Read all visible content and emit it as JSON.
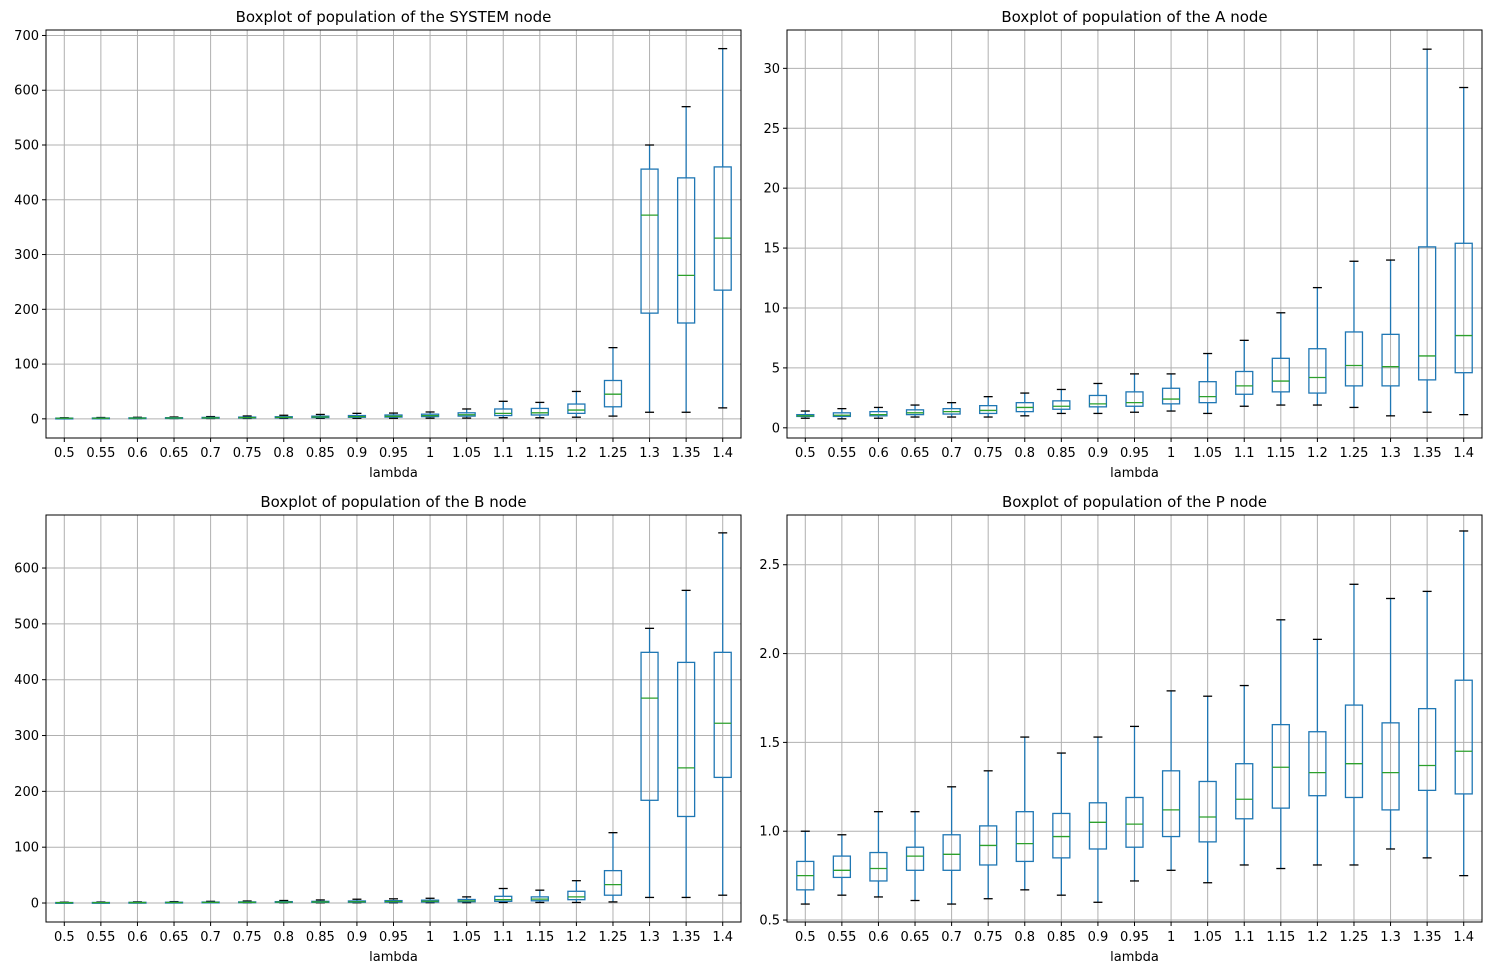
{
  "chart_data": [
    {
      "type": "boxplot",
      "title": "Boxplot of population of the SYSTEM node",
      "xlabel": "lambda",
      "ylabel": "",
      "grid": true,
      "ylim": [
        -35,
        710
      ],
      "yticks": [
        0,
        100,
        200,
        300,
        400,
        500,
        600,
        700
      ],
      "categories": [
        "0.5",
        "0.55",
        "0.6",
        "0.65",
        "0.7",
        "0.75",
        "0.8",
        "0.85",
        "0.9",
        "0.95",
        "1",
        "1.05",
        "1.1",
        "1.15",
        "1.2",
        "1.25",
        "1.3",
        "1.35",
        "1.4"
      ],
      "boxes": [
        {
          "whislo": 0.5,
          "q1": 0.8,
          "med": 1.0,
          "q3": 1.3,
          "whishi": 2.0
        },
        {
          "whislo": 0.5,
          "q1": 0.9,
          "med": 1.1,
          "q3": 1.5,
          "whishi": 2.4
        },
        {
          "whislo": 0.5,
          "q1": 1.0,
          "med": 1.3,
          "q3": 1.8,
          "whishi": 2.8
        },
        {
          "whislo": 0.6,
          "q1": 1.1,
          "med": 1.5,
          "q3": 2.1,
          "whishi": 3.3
        },
        {
          "whislo": 0.6,
          "q1": 1.3,
          "med": 1.8,
          "q3": 2.6,
          "whishi": 4.1
        },
        {
          "whislo": 0.7,
          "q1": 1.6,
          "med": 2.2,
          "q3": 3.2,
          "whishi": 5.2
        },
        {
          "whislo": 0.8,
          "q1": 1.9,
          "med": 2.7,
          "q3": 3.9,
          "whishi": 6.5
        },
        {
          "whislo": 0.9,
          "q1": 2.3,
          "med": 3.3,
          "q3": 4.9,
          "whishi": 8.0
        },
        {
          "whislo": 1.0,
          "q1": 2.8,
          "med": 4.0,
          "q3": 6.0,
          "whishi": 10.0
        },
        {
          "whislo": 1.0,
          "q1": 3.2,
          "med": 4.6,
          "q3": 7.0,
          "whishi": 10.5
        },
        {
          "whislo": 1.2,
          "q1": 4.0,
          "med": 5.8,
          "q3": 8.5,
          "whishi": 12.5
        },
        {
          "whislo": 1.4,
          "q1": 5.0,
          "med": 7.5,
          "q3": 11.0,
          "whishi": 18.0
        },
        {
          "whislo": 2.0,
          "q1": 6.0,
          "med": 10.0,
          "q3": 18.0,
          "whishi": 32.0
        },
        {
          "whislo": 2.0,
          "q1": 7.0,
          "med": 11.0,
          "q3": 19.0,
          "whishi": 30.0
        },
        {
          "whislo": 3.0,
          "q1": 10.0,
          "med": 16.0,
          "q3": 27.0,
          "whishi": 50.0
        },
        {
          "whislo": 5.0,
          "q1": 22.0,
          "med": 45.0,
          "q3": 70.0,
          "whishi": 130.0
        },
        {
          "whislo": 12.0,
          "q1": 193.0,
          "med": 372.0,
          "q3": 456.0,
          "whishi": 500.0
        },
        {
          "whislo": 12.0,
          "q1": 175.0,
          "med": 262.0,
          "q3": 440.0,
          "whishi": 570.0
        },
        {
          "whislo": 20.0,
          "q1": 235.0,
          "med": 330.0,
          "q3": 460.0,
          "whishi": 676.0
        }
      ]
    },
    {
      "type": "boxplot",
      "title": "Boxplot of population of the A node",
      "xlabel": "lambda",
      "ylabel": "",
      "grid": true,
      "ylim": [
        -0.85,
        33.2
      ],
      "yticks": [
        0,
        5,
        10,
        15,
        20,
        25,
        30
      ],
      "categories": [
        "0.5",
        "0.55",
        "0.6",
        "0.65",
        "0.7",
        "0.75",
        "0.8",
        "0.85",
        "0.9",
        "0.95",
        "1",
        "1.05",
        "1.1",
        "1.15",
        "1.2",
        "1.25",
        "1.3",
        "1.35",
        "1.4"
      ],
      "boxes": [
        {
          "whislo": 0.8,
          "q1": 0.95,
          "med": 1.0,
          "q3": 1.1,
          "whishi": 1.4
        },
        {
          "whislo": 0.75,
          "q1": 0.95,
          "med": 1.05,
          "q3": 1.25,
          "whishi": 1.6
        },
        {
          "whislo": 0.8,
          "q1": 1.0,
          "med": 1.1,
          "q3": 1.35,
          "whishi": 1.7
        },
        {
          "whislo": 0.9,
          "q1": 1.1,
          "med": 1.25,
          "q3": 1.5,
          "whishi": 1.9
        },
        {
          "whislo": 0.9,
          "q1": 1.15,
          "med": 1.35,
          "q3": 1.6,
          "whishi": 2.1
        },
        {
          "whislo": 0.9,
          "q1": 1.2,
          "med": 1.45,
          "q3": 1.85,
          "whishi": 2.6
        },
        {
          "whislo": 1.0,
          "q1": 1.35,
          "med": 1.7,
          "q3": 2.1,
          "whishi": 2.9
        },
        {
          "whislo": 1.2,
          "q1": 1.55,
          "med": 1.8,
          "q3": 2.25,
          "whishi": 3.2
        },
        {
          "whislo": 1.2,
          "q1": 1.75,
          "med": 2.0,
          "q3": 2.7,
          "whishi": 3.7
        },
        {
          "whislo": 1.3,
          "q1": 1.8,
          "med": 2.1,
          "q3": 3.0,
          "whishi": 4.5
        },
        {
          "whislo": 1.4,
          "q1": 2.0,
          "med": 2.4,
          "q3": 3.3,
          "whishi": 4.5
        },
        {
          "whislo": 1.2,
          "q1": 2.1,
          "med": 2.6,
          "q3": 3.85,
          "whishi": 6.2
        },
        {
          "whislo": 1.8,
          "q1": 2.8,
          "med": 3.5,
          "q3": 4.7,
          "whishi": 7.3
        },
        {
          "whislo": 1.9,
          "q1": 3.0,
          "med": 3.9,
          "q3": 5.8,
          "whishi": 9.6
        },
        {
          "whislo": 1.9,
          "q1": 2.9,
          "med": 4.2,
          "q3": 6.6,
          "whishi": 11.7
        },
        {
          "whislo": 1.7,
          "q1": 3.5,
          "med": 5.2,
          "q3": 8.0,
          "whishi": 13.9
        },
        {
          "whislo": 1.0,
          "q1": 3.5,
          "med": 5.1,
          "q3": 7.8,
          "whishi": 14.0
        },
        {
          "whislo": 1.3,
          "q1": 4.0,
          "med": 6.0,
          "q3": 15.1,
          "whishi": 31.6
        },
        {
          "whislo": 1.1,
          "q1": 4.6,
          "med": 7.7,
          "q3": 15.4,
          "whishi": 28.4
        }
      ]
    },
    {
      "type": "boxplot",
      "title": "Boxplot of population of the B node",
      "xlabel": "lambda",
      "ylabel": "",
      "grid": true,
      "ylim": [
        -34,
        695
      ],
      "yticks": [
        0,
        100,
        200,
        300,
        400,
        500,
        600
      ],
      "categories": [
        "0.5",
        "0.55",
        "0.6",
        "0.65",
        "0.7",
        "0.75",
        "0.8",
        "0.85",
        "0.9",
        "0.95",
        "1",
        "1.05",
        "1.1",
        "1.15",
        "1.2",
        "1.25",
        "1.3",
        "1.35",
        "1.4"
      ],
      "boxes": [
        {
          "whislo": 0.2,
          "q1": 0.4,
          "med": 0.6,
          "q3": 0.9,
          "whishi": 1.5
        },
        {
          "whislo": 0.2,
          "q1": 0.5,
          "med": 0.7,
          "q3": 1.0,
          "whishi": 1.8
        },
        {
          "whislo": 0.2,
          "q1": 0.5,
          "med": 0.8,
          "q3": 1.2,
          "whishi": 2.1
        },
        {
          "whislo": 0.3,
          "q1": 0.6,
          "med": 0.9,
          "q3": 1.4,
          "whishi": 2.5
        },
        {
          "whislo": 0.3,
          "q1": 0.7,
          "med": 1.1,
          "q3": 1.7,
          "whishi": 3.0
        },
        {
          "whislo": 0.3,
          "q1": 0.8,
          "med": 1.3,
          "q3": 2.0,
          "whishi": 3.6
        },
        {
          "whislo": 0.4,
          "q1": 1.0,
          "med": 1.6,
          "q3": 2.5,
          "whishi": 4.5
        },
        {
          "whislo": 0.4,
          "q1": 1.2,
          "med": 1.9,
          "q3": 3.0,
          "whishi": 5.5
        },
        {
          "whislo": 0.5,
          "q1": 1.4,
          "med": 2.3,
          "q3": 3.7,
          "whishi": 6.8
        },
        {
          "whislo": 0.5,
          "q1": 1.6,
          "med": 2.7,
          "q3": 4.3,
          "whishi": 7.5
        },
        {
          "whislo": 0.6,
          "q1": 1.9,
          "med": 3.2,
          "q3": 5.1,
          "whishi": 8.5
        },
        {
          "whislo": 0.6,
          "q1": 2.3,
          "med": 3.9,
          "q3": 6.3,
          "whishi": 11.0
        },
        {
          "whislo": 1.0,
          "q1": 3.0,
          "med": 6.0,
          "q3": 12.0,
          "whishi": 26.0
        },
        {
          "whislo": 1.0,
          "q1": 4.0,
          "med": 7.0,
          "q3": 11.0,
          "whishi": 23.0
        },
        {
          "whislo": 1.0,
          "q1": 6.0,
          "med": 11.0,
          "q3": 21.0,
          "whishi": 40.0
        },
        {
          "whislo": 2.0,
          "q1": 14.0,
          "med": 33.0,
          "q3": 58.0,
          "whishi": 126.0
        },
        {
          "whislo": 10.0,
          "q1": 184.0,
          "med": 367.0,
          "q3": 449.0,
          "whishi": 492.0
        },
        {
          "whislo": 10.0,
          "q1": 155.0,
          "med": 242.0,
          "q3": 431.0,
          "whishi": 560.0
        },
        {
          "whislo": 14.0,
          "q1": 225.0,
          "med": 322.0,
          "q3": 449.0,
          "whishi": 663.0
        }
      ]
    },
    {
      "type": "boxplot",
      "title": "Boxplot of population of the P node",
      "xlabel": "lambda",
      "ylabel": "",
      "grid": true,
      "ylim": [
        0.489,
        2.78
      ],
      "yticks": [
        0.5,
        1.0,
        1.5,
        2.0,
        2.5
      ],
      "ytick_labels": [
        "0.5",
        "1.0",
        "1.5",
        "2.0",
        "2.5"
      ],
      "categories": [
        "0.5",
        "0.55",
        "0.6",
        "0.65",
        "0.7",
        "0.75",
        "0.8",
        "0.85",
        "0.9",
        "0.95",
        "1",
        "1.05",
        "1.1",
        "1.15",
        "1.2",
        "1.25",
        "1.3",
        "1.35",
        "1.4"
      ],
      "boxes": [
        {
          "whislo": 0.59,
          "q1": 0.67,
          "med": 0.75,
          "q3": 0.83,
          "whishi": 1.0
        },
        {
          "whislo": 0.64,
          "q1": 0.74,
          "med": 0.78,
          "q3": 0.86,
          "whishi": 0.98
        },
        {
          "whislo": 0.63,
          "q1": 0.72,
          "med": 0.79,
          "q3": 0.88,
          "whishi": 1.11
        },
        {
          "whislo": 0.61,
          "q1": 0.78,
          "med": 0.86,
          "q3": 0.91,
          "whishi": 1.11
        },
        {
          "whislo": 0.59,
          "q1": 0.78,
          "med": 0.87,
          "q3": 0.98,
          "whishi": 1.25
        },
        {
          "whislo": 0.62,
          "q1": 0.81,
          "med": 0.92,
          "q3": 1.03,
          "whishi": 1.34
        },
        {
          "whislo": 0.67,
          "q1": 0.83,
          "med": 0.93,
          "q3": 1.11,
          "whishi": 1.53
        },
        {
          "whislo": 0.64,
          "q1": 0.85,
          "med": 0.97,
          "q3": 1.1,
          "whishi": 1.44
        },
        {
          "whislo": 0.6,
          "q1": 0.9,
          "med": 1.05,
          "q3": 1.16,
          "whishi": 1.53
        },
        {
          "whislo": 0.72,
          "q1": 0.91,
          "med": 1.04,
          "q3": 1.19,
          "whishi": 1.59
        },
        {
          "whislo": 0.78,
          "q1": 0.97,
          "med": 1.12,
          "q3": 1.34,
          "whishi": 1.79
        },
        {
          "whislo": 0.71,
          "q1": 0.94,
          "med": 1.08,
          "q3": 1.28,
          "whishi": 1.76
        },
        {
          "whislo": 0.81,
          "q1": 1.07,
          "med": 1.18,
          "q3": 1.38,
          "whishi": 1.82
        },
        {
          "whislo": 0.79,
          "q1": 1.13,
          "med": 1.36,
          "q3": 1.6,
          "whishi": 2.19
        },
        {
          "whislo": 0.81,
          "q1": 1.2,
          "med": 1.33,
          "q3": 1.56,
          "whishi": 2.08
        },
        {
          "whislo": 0.81,
          "q1": 1.19,
          "med": 1.38,
          "q3": 1.71,
          "whishi": 2.39
        },
        {
          "whislo": 0.9,
          "q1": 1.12,
          "med": 1.33,
          "q3": 1.61,
          "whishi": 2.31
        },
        {
          "whislo": 0.85,
          "q1": 1.23,
          "med": 1.37,
          "q3": 1.69,
          "whishi": 2.35
        },
        {
          "whislo": 0.75,
          "q1": 1.21,
          "med": 1.45,
          "q3": 1.85,
          "whishi": 2.69
        }
      ]
    }
  ],
  "colors": {
    "box": "#1f77b4",
    "median": "#2ca02c",
    "grid": "#b0b0b0",
    "axes": "#000000"
  }
}
